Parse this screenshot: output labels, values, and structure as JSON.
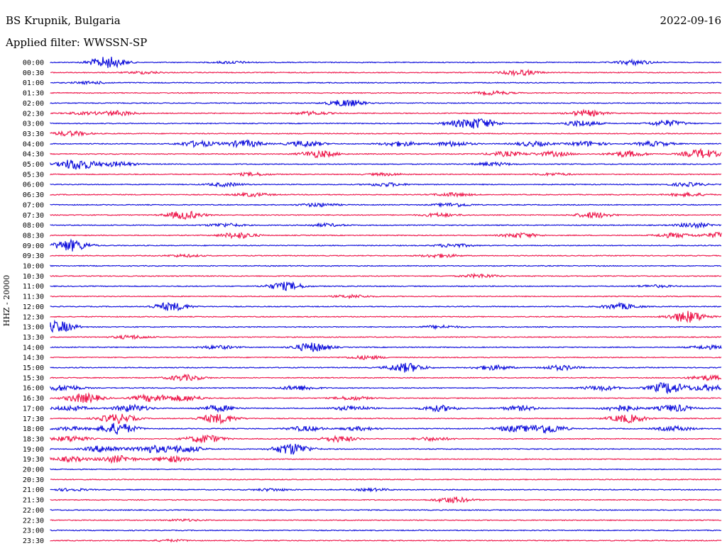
{
  "header": {
    "station": "BS Krupnik, Bulgaria",
    "date": "2022-09-16",
    "filter": "Applied filter: WWSSN-SP"
  },
  "chart_data": {
    "type": "line",
    "ylabel": "HHZ - 20000",
    "colors": [
      "#1414dc",
      "#ee1e50"
    ],
    "rows": [
      {
        "label": "00:00",
        "events": [
          [
            0.085,
            1.0
          ],
          [
            0.27,
            0.2
          ],
          [
            0.87,
            0.4
          ]
        ]
      },
      {
        "label": "00:30",
        "events": [
          [
            0.14,
            0.2
          ],
          [
            0.7,
            0.45
          ]
        ]
      },
      {
        "label": "01:00",
        "events": [
          [
            0.06,
            0.2
          ]
        ]
      },
      {
        "label": "01:30",
        "events": [
          [
            0.66,
            0.3
          ]
        ]
      },
      {
        "label": "02:00",
        "events": [
          [
            0.44,
            0.6
          ]
        ]
      },
      {
        "label": "02:30",
        "events": [
          [
            0.05,
            0.2
          ],
          [
            0.1,
            0.4
          ],
          [
            0.39,
            0.3
          ],
          [
            0.8,
            0.5
          ]
        ]
      },
      {
        "label": "03:00",
        "events": [
          [
            0.61,
            0.4
          ],
          [
            0.64,
            0.8
          ],
          [
            0.79,
            0.5
          ],
          [
            0.92,
            0.5
          ]
        ]
      },
      {
        "label": "03:30",
        "events": [
          [
            0.03,
            0.4
          ]
        ]
      },
      {
        "label": "04:00",
        "events": [
          [
            0.22,
            0.5
          ],
          [
            0.29,
            0.6
          ],
          [
            0.38,
            0.5
          ],
          [
            0.52,
            0.4
          ],
          [
            0.6,
            0.4
          ],
          [
            0.72,
            0.4
          ],
          [
            0.8,
            0.4
          ],
          [
            0.9,
            0.4
          ]
        ]
      },
      {
        "label": "04:30",
        "events": [
          [
            0.4,
            0.6
          ],
          [
            0.68,
            0.4
          ],
          [
            0.75,
            0.4
          ],
          [
            0.86,
            0.5
          ],
          [
            0.97,
            0.8
          ]
        ]
      },
      {
        "label": "05:00",
        "events": [
          [
            0.04,
            1.0
          ],
          [
            0.1,
            0.4
          ],
          [
            0.66,
            0.3
          ]
        ]
      },
      {
        "label": "05:30",
        "events": [
          [
            0.3,
            0.25
          ],
          [
            0.5,
            0.2
          ],
          [
            0.75,
            0.2
          ]
        ]
      },
      {
        "label": "06:00",
        "events": [
          [
            0.26,
            0.3
          ],
          [
            0.5,
            0.3
          ],
          [
            0.95,
            0.3
          ]
        ]
      },
      {
        "label": "06:30",
        "events": [
          [
            0.3,
            0.3
          ],
          [
            0.6,
            0.3
          ],
          [
            0.95,
            0.3
          ]
        ]
      },
      {
        "label": "07:00",
        "events": [
          [
            0.4,
            0.3
          ],
          [
            0.6,
            0.3
          ]
        ]
      },
      {
        "label": "07:30",
        "events": [
          [
            0.2,
            0.7
          ],
          [
            0.58,
            0.3
          ],
          [
            0.81,
            0.5
          ]
        ]
      },
      {
        "label": "08:00",
        "events": [
          [
            0.26,
            0.3
          ],
          [
            0.41,
            0.25
          ],
          [
            0.96,
            0.4
          ]
        ]
      },
      {
        "label": "08:30",
        "events": [
          [
            0.28,
            0.5
          ],
          [
            0.7,
            0.4
          ],
          [
            0.93,
            0.4
          ],
          [
            1.0,
            0.5
          ]
        ]
      },
      {
        "label": "09:00",
        "events": [
          [
            0.03,
            1.0
          ],
          [
            0.6,
            0.3
          ]
        ]
      },
      {
        "label": "09:30",
        "events": [
          [
            0.2,
            0.2
          ],
          [
            0.58,
            0.3
          ]
        ]
      },
      {
        "label": "10:00",
        "events": []
      },
      {
        "label": "10:30",
        "events": [
          [
            0.64,
            0.3
          ]
        ]
      },
      {
        "label": "11:00",
        "events": [
          [
            0.35,
            0.7
          ],
          [
            0.9,
            0.2
          ]
        ]
      },
      {
        "label": "11:30",
        "events": [
          [
            0.45,
            0.25
          ]
        ]
      },
      {
        "label": "12:00",
        "events": [
          [
            0.18,
            0.7
          ],
          [
            0.85,
            0.5
          ]
        ]
      },
      {
        "label": "12:30",
        "events": [
          [
            0.95,
            1.0
          ]
        ]
      },
      {
        "label": "13:00",
        "events": [
          [
            0.01,
            1.0
          ],
          [
            0.58,
            0.25
          ]
        ]
      },
      {
        "label": "13:30",
        "events": [
          [
            0.12,
            0.3
          ]
        ]
      },
      {
        "label": "14:00",
        "events": [
          [
            0.25,
            0.3
          ],
          [
            0.39,
            0.8
          ],
          [
            0.98,
            0.3
          ]
        ]
      },
      {
        "label": "14:30",
        "events": [
          [
            0.47,
            0.3
          ]
        ]
      },
      {
        "label": "15:00",
        "events": [
          [
            0.53,
            0.8
          ],
          [
            0.66,
            0.4
          ],
          [
            0.76,
            0.4
          ]
        ]
      },
      {
        "label": "15:30",
        "events": [
          [
            0.2,
            0.5
          ],
          [
            0.98,
            0.4
          ]
        ]
      },
      {
        "label": "16:00",
        "events": [
          [
            0.02,
            0.5
          ],
          [
            0.37,
            0.4
          ],
          [
            0.82,
            0.4
          ],
          [
            0.92,
            1.0
          ],
          [
            0.98,
            0.5
          ]
        ]
      },
      {
        "label": "16:30",
        "events": [
          [
            0.05,
            0.8
          ],
          [
            0.15,
            0.6
          ],
          [
            0.2,
            0.5
          ],
          [
            0.45,
            0.3
          ]
        ]
      },
      {
        "label": "17:00",
        "events": [
          [
            0.03,
            0.4
          ],
          [
            0.12,
            0.6
          ],
          [
            0.25,
            0.5
          ],
          [
            0.45,
            0.4
          ],
          [
            0.58,
            0.5
          ],
          [
            0.7,
            0.4
          ],
          [
            0.85,
            0.5
          ],
          [
            0.93,
            0.6
          ]
        ]
      },
      {
        "label": "17:30",
        "events": [
          [
            0.1,
            0.8
          ],
          [
            0.25,
            0.8
          ],
          [
            0.86,
            0.7
          ]
        ]
      },
      {
        "label": "18:00",
        "events": [
          [
            0.03,
            0.3
          ],
          [
            0.1,
            1.0
          ],
          [
            0.38,
            0.4
          ],
          [
            0.46,
            0.3
          ],
          [
            0.69,
            0.5
          ],
          [
            0.74,
            0.8
          ],
          [
            0.93,
            0.4
          ]
        ]
      },
      {
        "label": "18:30",
        "events": [
          [
            0.03,
            0.5
          ],
          [
            0.23,
            0.7
          ],
          [
            0.43,
            0.5
          ],
          [
            0.57,
            0.3
          ]
        ]
      },
      {
        "label": "19:00",
        "events": [
          [
            0.08,
            0.6
          ],
          [
            0.15,
            0.6
          ],
          [
            0.2,
            0.6
          ],
          [
            0.36,
            1.0
          ]
        ]
      },
      {
        "label": "19:30",
        "events": [
          [
            0.03,
            0.4
          ],
          [
            0.1,
            0.6
          ],
          [
            0.18,
            0.5
          ]
        ]
      },
      {
        "label": "20:00",
        "events": []
      },
      {
        "label": "20:30",
        "events": []
      },
      {
        "label": "21:00",
        "events": [
          [
            0.03,
            0.2
          ],
          [
            0.33,
            0.2
          ],
          [
            0.48,
            0.2
          ]
        ]
      },
      {
        "label": "21:30",
        "events": [
          [
            0.6,
            0.5
          ]
        ]
      },
      {
        "label": "22:00",
        "events": []
      },
      {
        "label": "22:30",
        "events": [
          [
            0.2,
            0.15
          ]
        ]
      },
      {
        "label": "23:00",
        "events": []
      },
      {
        "label": "23:30",
        "events": [
          [
            0.18,
            0.15
          ]
        ]
      }
    ]
  }
}
